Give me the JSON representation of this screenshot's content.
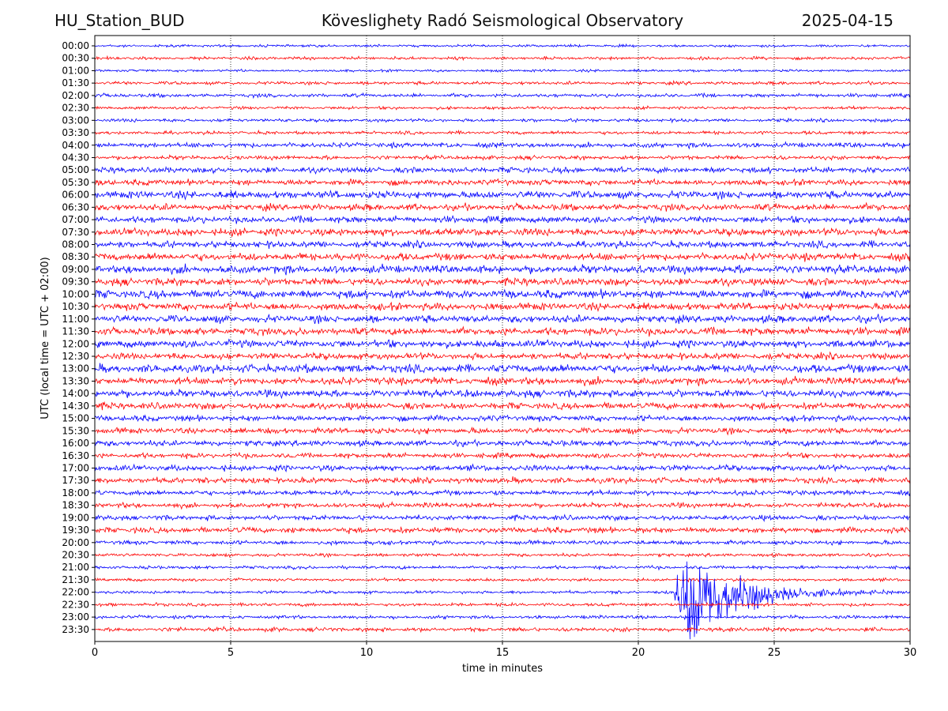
{
  "header": {
    "station": "HU_Station_BUD",
    "title": "Köveslighety Radó Seismological Observatory",
    "date": "2025-04-15"
  },
  "chart_data": {
    "type": "line",
    "subtype": "helicorder",
    "xlabel": "time in minutes",
    "ylabel": "UTC (local time = UTC + 02:00)",
    "xlim": [
      0,
      30
    ],
    "x_ticks": [
      0,
      5,
      10,
      15,
      20,
      25,
      30
    ],
    "grid": "vertical dotted lines at x ticks",
    "colors": {
      "even": "#0000ff",
      "odd": "#ff0000"
    },
    "rows": [
      "00:00",
      "00:30",
      "01:00",
      "01:30",
      "02:00",
      "02:30",
      "03:00",
      "03:30",
      "04:00",
      "04:30",
      "05:00",
      "05:30",
      "06:00",
      "06:30",
      "07:00",
      "07:30",
      "08:00",
      "08:30",
      "09:00",
      "09:30",
      "10:00",
      "10:30",
      "11:00",
      "11:30",
      "12:00",
      "12:30",
      "13:00",
      "13:30",
      "14:00",
      "14:30",
      "15:00",
      "15:30",
      "16:00",
      "16:30",
      "17:00",
      "17:30",
      "18:00",
      "18:30",
      "19:00",
      "19:30",
      "20:00",
      "20:30",
      "21:00",
      "21:30",
      "22:00",
      "22:30",
      "23:00",
      "23:30"
    ],
    "noise_level": [
      0.15,
      0.18,
      0.15,
      0.2,
      0.22,
      0.18,
      0.2,
      0.2,
      0.3,
      0.25,
      0.35,
      0.35,
      0.45,
      0.4,
      0.4,
      0.45,
      0.4,
      0.45,
      0.5,
      0.45,
      0.5,
      0.45,
      0.45,
      0.45,
      0.45,
      0.4,
      0.5,
      0.45,
      0.45,
      0.4,
      0.35,
      0.35,
      0.35,
      0.3,
      0.35,
      0.35,
      0.3,
      0.3,
      0.3,
      0.35,
      0.25,
      0.2,
      0.2,
      0.18,
      0.18,
      0.2,
      0.2,
      0.25
    ],
    "events": [
      {
        "row": "22:00",
        "start_min": 21.3,
        "end_min": 30,
        "peak_row_heights": 3.2,
        "description": "earthquake"
      }
    ]
  }
}
